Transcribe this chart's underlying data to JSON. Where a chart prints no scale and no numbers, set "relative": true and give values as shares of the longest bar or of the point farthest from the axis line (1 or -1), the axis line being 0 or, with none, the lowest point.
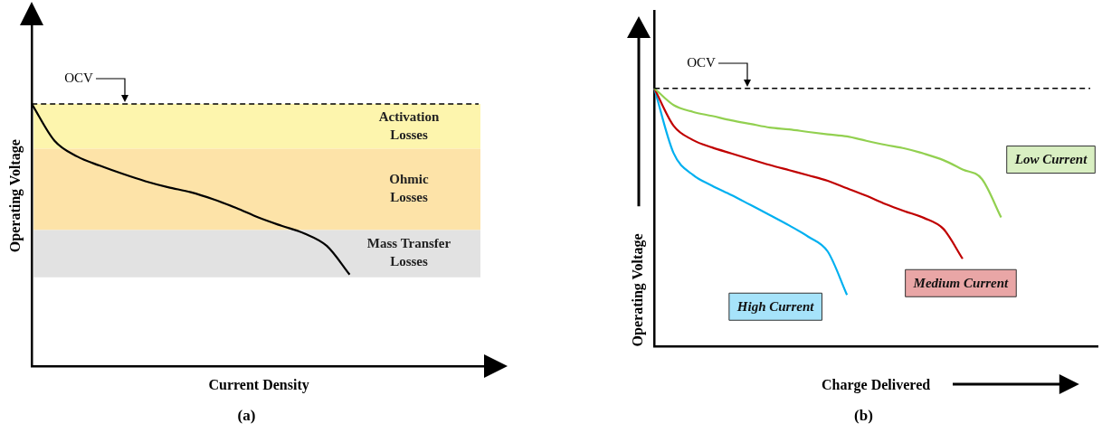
{
  "chart_data": [
    {
      "type": "line",
      "title": "(a)",
      "xlabel": "Current Density",
      "ylabel": "Operating Voltage",
      "relative": true,
      "legend": false,
      "grid": false,
      "marker": "none",
      "categories": [
        null,
        null,
        null,
        null,
        null,
        null,
        null,
        null,
        null,
        null,
        null,
        null,
        null,
        null,
        null,
        null,
        null,
        null,
        null,
        null,
        null
      ],
      "series": [
        {
          "color": "#000000",
          "values": [
            1.0,
            0.86,
            0.8,
            0.765,
            0.734,
            0.706,
            0.683,
            0.664,
            0.637,
            0.604,
            0.567,
            0.536,
            0.507,
            0.459,
            0.35,
            null,
            null,
            null,
            null,
            null,
            null
          ]
        }
      ],
      "bands": [
        {
          "axis": "y",
          "from": 0.83,
          "to": 1.0,
          "label": "Activation Losses",
          "color": "#fdf5ad"
        },
        {
          "axis": "y",
          "from": 0.52,
          "to": 0.83,
          "label": "Ohmic Losses",
          "color": "#fde3a8"
        },
        {
          "axis": "y",
          "from": 0.34,
          "to": 0.52,
          "label": "Mass Transfer Losses",
          "color": "#e2e2e2"
        }
      ],
      "ref_lines": [
        {
          "axis": "y",
          "value": 1.0,
          "label": "OCV",
          "line_style": "dashed",
          "color": "#000000"
        }
      ]
    },
    {
      "type": "line",
      "title": "(b)",
      "xlabel": "Charge Delivered",
      "ylabel": "Operating Voltage",
      "relative": true,
      "legend": false,
      "grid": false,
      "marker": "none",
      "categories": [
        null,
        null,
        null,
        null,
        null,
        null,
        null,
        null,
        null,
        null,
        null,
        null,
        null,
        null,
        null,
        null,
        null,
        null,
        null,
        null,
        null,
        null,
        null,
        null
      ],
      "series": [
        {
          "name": "Low Current",
          "color": "#92d050",
          "values": [
            1.0,
            0.935,
            0.909,
            0.893,
            0.876,
            0.862,
            0.848,
            0.841,
            0.831,
            0.822,
            0.814,
            0.797,
            0.781,
            0.767,
            0.747,
            0.722,
            0.686,
            0.649,
            0.5,
            null,
            null,
            null,
            null,
            null
          ]
        },
        {
          "name": "Medium Current",
          "color": "#c00000",
          "values": [
            1.0,
            0.855,
            0.8,
            0.771,
            0.748,
            0.725,
            0.703,
            0.683,
            0.663,
            0.642,
            0.613,
            0.584,
            0.552,
            0.524,
            0.498,
            0.456,
            0.34,
            null,
            null,
            null,
            null,
            null,
            null,
            null
          ]
        },
        {
          "name": "High Current",
          "color": "#00b0f0",
          "values": [
            1.0,
            0.749,
            0.665,
            0.623,
            0.587,
            0.548,
            0.509,
            0.469,
            0.425,
            0.368,
            0.2,
            null,
            null,
            null,
            null,
            null,
            null,
            null,
            null,
            null,
            null,
            null,
            null,
            null
          ]
        }
      ],
      "ref_lines": [
        {
          "axis": "y",
          "value": 1.0,
          "label": "OCV",
          "line_style": "dashed",
          "color": "#000000"
        }
      ]
    }
  ]
}
